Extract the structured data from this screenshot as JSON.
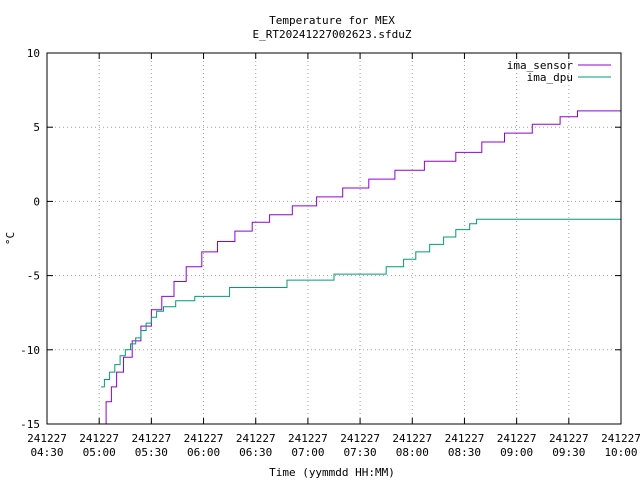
{
  "chart_data": {
    "type": "line",
    "title": "Temperature for MEX",
    "subtitle": "E_RT20241227002623.sfduZ",
    "xlabel": "Time (yymmdd HH:MM)",
    "ylabel": "°C",
    "ylim": [
      -15,
      10
    ],
    "yticks": [
      "-15",
      "-10",
      "-5",
      "0",
      "5",
      "10"
    ],
    "xlim": [
      "2024-12-27 04:30",
      "2024-12-27 10:00"
    ],
    "xticks": [
      {
        "date": "241227",
        "time": "04:30"
      },
      {
        "date": "241227",
        "time": "05:00"
      },
      {
        "date": "241227",
        "time": "05:30"
      },
      {
        "date": "241227",
        "time": "06:00"
      },
      {
        "date": "241227",
        "time": "06:30"
      },
      {
        "date": "241227",
        "time": "07:00"
      },
      {
        "date": "241227",
        "time": "07:30"
      },
      {
        "date": "241227",
        "time": "08:00"
      },
      {
        "date": "241227",
        "time": "08:30"
      },
      {
        "date": "241227",
        "time": "09:00"
      },
      {
        "date": "241227",
        "time": "09:30"
      },
      {
        "date": "241227",
        "time": "10:00"
      }
    ],
    "grid": true,
    "legend_position": "top-right",
    "series": [
      {
        "name": "ima_sensor",
        "color": "#9400d3",
        "points": [
          [
            "2024-12-27 05:01",
            -15.0
          ],
          [
            "2024-12-27 05:04",
            -13.5
          ],
          [
            "2024-12-27 05:07",
            -12.5
          ],
          [
            "2024-12-27 05:10",
            -11.5
          ],
          [
            "2024-12-27 05:14",
            -10.5
          ],
          [
            "2024-12-27 05:19",
            -9.4
          ],
          [
            "2024-12-27 05:24",
            -8.4
          ],
          [
            "2024-12-27 05:30",
            -7.3
          ],
          [
            "2024-12-27 05:36",
            -6.4
          ],
          [
            "2024-12-27 05:43",
            -5.4
          ],
          [
            "2024-12-27 05:50",
            -4.4
          ],
          [
            "2024-12-27 05:59",
            -3.4
          ],
          [
            "2024-12-27 06:08",
            -2.7
          ],
          [
            "2024-12-27 06:18",
            -2.0
          ],
          [
            "2024-12-27 06:28",
            -1.4
          ],
          [
            "2024-12-27 06:38",
            -0.9
          ],
          [
            "2024-12-27 06:51",
            -0.3
          ],
          [
            "2024-12-27 07:05",
            0.3
          ],
          [
            "2024-12-27 07:20",
            0.9
          ],
          [
            "2024-12-27 07:35",
            1.5
          ],
          [
            "2024-12-27 07:50",
            2.1
          ],
          [
            "2024-12-27 08:07",
            2.7
          ],
          [
            "2024-12-27 08:25",
            3.3
          ],
          [
            "2024-12-27 08:40",
            4.0
          ],
          [
            "2024-12-27 08:53",
            4.6
          ],
          [
            "2024-12-27 09:09",
            5.2
          ],
          [
            "2024-12-27 09:25",
            5.7
          ],
          [
            "2024-12-27 09:35",
            6.1
          ],
          [
            "2024-12-27 10:00",
            6.2
          ]
        ]
      },
      {
        "name": "ima_dpu",
        "color": "#009e73",
        "points": [
          [
            "2024-12-27 05:01",
            -12.5
          ],
          [
            "2024-12-27 05:03",
            -12.0
          ],
          [
            "2024-12-27 05:06",
            -11.5
          ],
          [
            "2024-12-27 05:09",
            -11.0
          ],
          [
            "2024-12-27 05:12",
            -10.4
          ],
          [
            "2024-12-27 05:15",
            -10.0
          ],
          [
            "2024-12-27 05:18",
            -9.6
          ],
          [
            "2024-12-27 05:21",
            -9.2
          ],
          [
            "2024-12-27 05:24",
            -8.7
          ],
          [
            "2024-12-27 05:27",
            -8.2
          ],
          [
            "2024-12-27 05:30",
            -7.8
          ],
          [
            "2024-12-27 05:33",
            -7.4
          ],
          [
            "2024-12-27 05:37",
            -7.1
          ],
          [
            "2024-12-27 05:44",
            -6.7
          ],
          [
            "2024-12-27 05:55",
            -6.4
          ],
          [
            "2024-12-27 06:15",
            -5.8
          ],
          [
            "2024-12-27 06:48",
            -5.3
          ],
          [
            "2024-12-27 07:15",
            -4.9
          ],
          [
            "2024-12-27 07:45",
            -4.4
          ],
          [
            "2024-12-27 07:55",
            -3.9
          ],
          [
            "2024-12-27 08:02",
            -3.4
          ],
          [
            "2024-12-27 08:10",
            -2.9
          ],
          [
            "2024-12-27 08:18",
            -2.4
          ],
          [
            "2024-12-27 08:25",
            -1.9
          ],
          [
            "2024-12-27 08:33",
            -1.5
          ],
          [
            "2024-12-27 08:37",
            -1.2
          ],
          [
            "2024-12-27 09:55",
            -1.2
          ],
          [
            "2024-12-27 10:00",
            -1.6
          ]
        ]
      }
    ]
  }
}
